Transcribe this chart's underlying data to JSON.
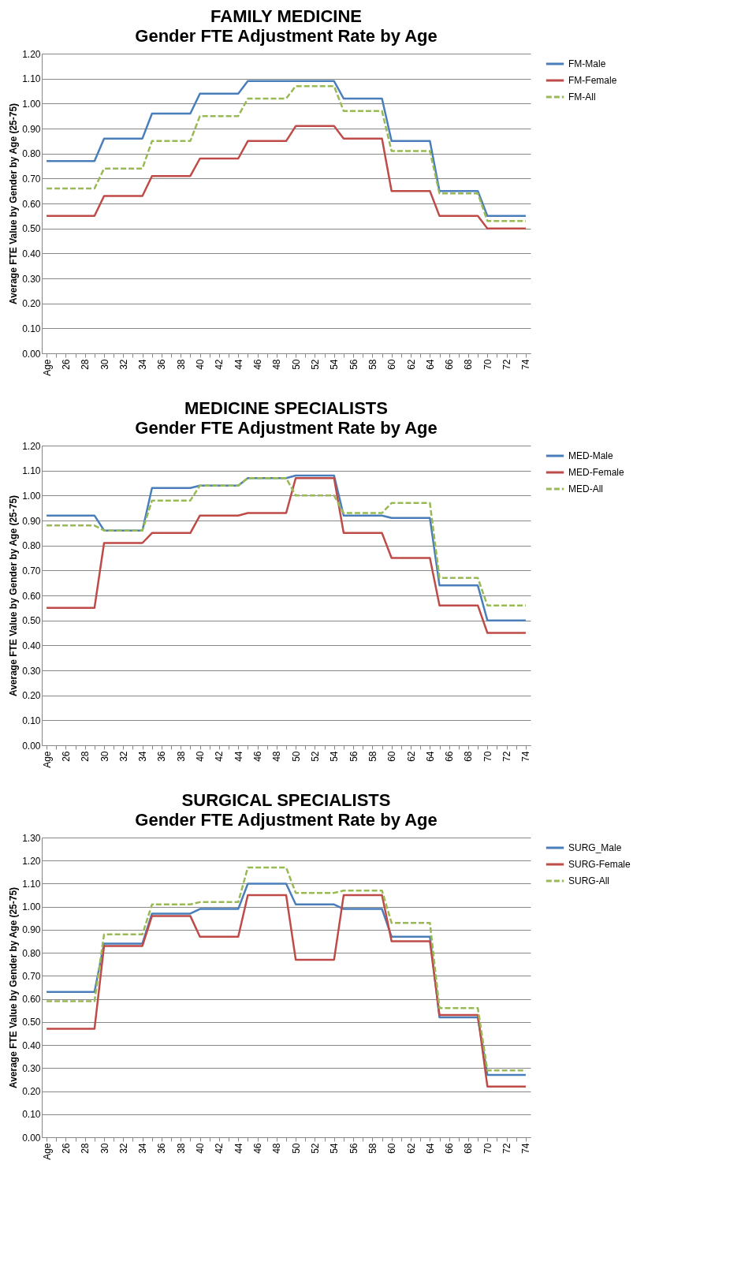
{
  "chart_data": [
    {
      "type": "line",
      "title": "FAMILY MEDICINE",
      "subtitle": "Gender FTE Adjustment Rate by Age",
      "ylabel": "Average FTE Value by Gender by Age (25-75)",
      "categories": [
        "Age",
        null,
        "26",
        null,
        "28",
        null,
        "30",
        null,
        "32",
        null,
        "34",
        null,
        "36",
        null,
        "38",
        null,
        "40",
        null,
        "42",
        null,
        "44",
        null,
        "46",
        null,
        "48",
        null,
        "50",
        null,
        "52",
        null,
        "54",
        null,
        "56",
        null,
        "58",
        null,
        "60",
        null,
        "62",
        null,
        "64",
        null,
        "66",
        null,
        "68",
        null,
        "70",
        null,
        "72",
        null,
        "74"
      ],
      "series": [
        {
          "name": "FM-Male",
          "color": "#4a7ebb",
          "line_style": "solid",
          "values": [
            0.77,
            0.77,
            0.77,
            0.77,
            0.77,
            0.77,
            0.86,
            0.86,
            0.86,
            0.86,
            0.86,
            0.96,
            0.96,
            0.96,
            0.96,
            0.96,
            1.04,
            1.04,
            1.04,
            1.04,
            1.04,
            1.09,
            1.09,
            1.09,
            1.09,
            1.09,
            1.09,
            1.09,
            1.09,
            1.09,
            1.09,
            1.02,
            1.02,
            1.02,
            1.02,
            1.02,
            0.85,
            0.85,
            0.85,
            0.85,
            0.85,
            0.65,
            0.65,
            0.65,
            0.65,
            0.65,
            0.55,
            0.55,
            0.55,
            0.55,
            0.55
          ]
        },
        {
          "name": "FM-Female",
          "color": "#be4b48",
          "line_style": "solid",
          "values": [
            0.55,
            0.55,
            0.55,
            0.55,
            0.55,
            0.55,
            0.63,
            0.63,
            0.63,
            0.63,
            0.63,
            0.71,
            0.71,
            0.71,
            0.71,
            0.71,
            0.78,
            0.78,
            0.78,
            0.78,
            0.78,
            0.85,
            0.85,
            0.85,
            0.85,
            0.85,
            0.91,
            0.91,
            0.91,
            0.91,
            0.91,
            0.86,
            0.86,
            0.86,
            0.86,
            0.86,
            0.65,
            0.65,
            0.65,
            0.65,
            0.65,
            0.55,
            0.55,
            0.55,
            0.55,
            0.55,
            0.5,
            0.5,
            0.5,
            0.5,
            0.5
          ]
        },
        {
          "name": "FM-All",
          "color": "#98b954",
          "line_style": "dashed",
          "values": [
            0.66,
            0.66,
            0.66,
            0.66,
            0.66,
            0.66,
            0.74,
            0.74,
            0.74,
            0.74,
            0.74,
            0.85,
            0.85,
            0.85,
            0.85,
            0.85,
            0.95,
            0.95,
            0.95,
            0.95,
            0.95,
            1.02,
            1.02,
            1.02,
            1.02,
            1.02,
            1.07,
            1.07,
            1.07,
            1.07,
            1.07,
            0.97,
            0.97,
            0.97,
            0.97,
            0.97,
            0.81,
            0.81,
            0.81,
            0.81,
            0.81,
            0.64,
            0.64,
            0.64,
            0.64,
            0.64,
            0.53,
            0.53,
            0.53,
            0.53,
            0.53
          ]
        }
      ],
      "ylim": [
        0,
        1.2
      ],
      "yticks": [
        {
          "value": 0,
          "label": "0.00"
        },
        {
          "value": 0.1,
          "label": "0.10"
        },
        {
          "value": 0.2,
          "label": "0.20"
        },
        {
          "value": 0.3,
          "label": "0.30"
        },
        {
          "value": 0.4,
          "label": "0.40"
        },
        {
          "value": 0.5,
          "label": "0.50"
        },
        {
          "value": 0.6,
          "label": "0.60"
        },
        {
          "value": 0.7,
          "label": "0.70"
        },
        {
          "value": 0.8,
          "label": "0.80"
        },
        {
          "value": 0.9,
          "label": "0.90"
        },
        {
          "value": 1,
          "label": "1.00"
        },
        {
          "value": 1.1,
          "label": "1.10"
        },
        {
          "value": 1.2,
          "label": "1.20"
        }
      ],
      "grid": "y",
      "legend": "right"
    },
    {
      "type": "line",
      "title": "MEDICINE SPECIALISTS",
      "subtitle": "Gender FTE Adjustment Rate by Age",
      "ylabel": "Average FTE Value by Gender by Age (25-75)",
      "categories": [
        "Age",
        null,
        "26",
        null,
        "28",
        null,
        "30",
        null,
        "32",
        null,
        "34",
        null,
        "36",
        null,
        "38",
        null,
        "40",
        null,
        "42",
        null,
        "44",
        null,
        "46",
        null,
        "48",
        null,
        "50",
        null,
        "52",
        null,
        "54",
        null,
        "56",
        null,
        "58",
        null,
        "60",
        null,
        "62",
        null,
        "64",
        null,
        "66",
        null,
        "68",
        null,
        "70",
        null,
        "72",
        null,
        "74"
      ],
      "series": [
        {
          "name": "MED-Male",
          "color": "#4a7ebb",
          "line_style": "solid",
          "values": [
            0.92,
            0.92,
            0.92,
            0.92,
            0.92,
            0.92,
            0.86,
            0.86,
            0.86,
            0.86,
            0.86,
            1.03,
            1.03,
            1.03,
            1.03,
            1.03,
            1.04,
            1.04,
            1.04,
            1.04,
            1.04,
            1.07,
            1.07,
            1.07,
            1.07,
            1.07,
            1.08,
            1.08,
            1.08,
            1.08,
            1.08,
            0.92,
            0.92,
            0.92,
            0.92,
            0.92,
            0.91,
            0.91,
            0.91,
            0.91,
            0.91,
            0.64,
            0.64,
            0.64,
            0.64,
            0.64,
            0.5,
            0.5,
            0.5,
            0.5,
            0.5
          ]
        },
        {
          "name": "MED-Female",
          "color": "#be4b48",
          "line_style": "solid",
          "values": [
            0.55,
            0.55,
            0.55,
            0.55,
            0.55,
            0.55,
            0.81,
            0.81,
            0.81,
            0.81,
            0.81,
            0.85,
            0.85,
            0.85,
            0.85,
            0.85,
            0.92,
            0.92,
            0.92,
            0.92,
            0.92,
            0.93,
            0.93,
            0.93,
            0.93,
            0.93,
            1.07,
            1.07,
            1.07,
            1.07,
            1.07,
            0.85,
            0.85,
            0.85,
            0.85,
            0.85,
            0.75,
            0.75,
            0.75,
            0.75,
            0.75,
            0.56,
            0.56,
            0.56,
            0.56,
            0.56,
            0.45,
            0.45,
            0.45,
            0.45,
            0.45
          ]
        },
        {
          "name": "MED-All",
          "color": "#98b954",
          "line_style": "dashed",
          "values": [
            0.88,
            0.88,
            0.88,
            0.88,
            0.88,
            0.88,
            0.86,
            0.86,
            0.86,
            0.86,
            0.86,
            0.98,
            0.98,
            0.98,
            0.98,
            0.98,
            1.04,
            1.04,
            1.04,
            1.04,
            1.04,
            1.07,
            1.07,
            1.07,
            1.07,
            1.07,
            1.0,
            1.0,
            1.0,
            1.0,
            1.0,
            0.93,
            0.93,
            0.93,
            0.93,
            0.93,
            0.97,
            0.97,
            0.97,
            0.97,
            0.97,
            0.67,
            0.67,
            0.67,
            0.67,
            0.67,
            0.56,
            0.56,
            0.56,
            0.56,
            0.56
          ]
        }
      ],
      "ylim": [
        0,
        1.2
      ],
      "yticks": [
        {
          "value": 0,
          "label": "0.00"
        },
        {
          "value": 0.1,
          "label": "0.10"
        },
        {
          "value": 0.2,
          "label": "0.20"
        },
        {
          "value": 0.3,
          "label": "0.30"
        },
        {
          "value": 0.4,
          "label": "0.40"
        },
        {
          "value": 0.5,
          "label": "0.50"
        },
        {
          "value": 0.6,
          "label": "0.60"
        },
        {
          "value": 0.7,
          "label": "0.70"
        },
        {
          "value": 0.8,
          "label": "0.80"
        },
        {
          "value": 0.9,
          "label": "0.90"
        },
        {
          "value": 1,
          "label": "1.00"
        },
        {
          "value": 1.1,
          "label": "1.10"
        },
        {
          "value": 1.2,
          "label": "1.20"
        }
      ],
      "grid": "y",
      "legend": "right"
    },
    {
      "type": "line",
      "title": "SURGICAL SPECIALISTS",
      "subtitle": "Gender FTE Adjustment Rate by Age",
      "ylabel": "Average FTE Value by Gender by Age (25-75)",
      "categories": [
        "Age",
        null,
        "26",
        null,
        "28",
        null,
        "30",
        null,
        "32",
        null,
        "34",
        null,
        "36",
        null,
        "38",
        null,
        "40",
        null,
        "42",
        null,
        "44",
        null,
        "46",
        null,
        "48",
        null,
        "50",
        null,
        "52",
        null,
        "54",
        null,
        "56",
        null,
        "58",
        null,
        "60",
        null,
        "62",
        null,
        "64",
        null,
        "66",
        null,
        "68",
        null,
        "70",
        null,
        "72",
        null,
        "74"
      ],
      "series": [
        {
          "name": "SURG_Male",
          "color": "#4a7ebb",
          "line_style": "solid",
          "values": [
            0.63,
            0.63,
            0.63,
            0.63,
            0.63,
            0.63,
            0.84,
            0.84,
            0.84,
            0.84,
            0.84,
            0.97,
            0.97,
            0.97,
            0.97,
            0.97,
            0.99,
            0.99,
            0.99,
            0.99,
            0.99,
            1.1,
            1.1,
            1.1,
            1.1,
            1.1,
            1.01,
            1.01,
            1.01,
            1.01,
            1.01,
            0.99,
            0.99,
            0.99,
            0.99,
            0.99,
            0.87,
            0.87,
            0.87,
            0.87,
            0.87,
            0.52,
            0.52,
            0.52,
            0.52,
            0.52,
            0.27,
            0.27,
            0.27,
            0.27,
            0.27
          ]
        },
        {
          "name": "SURG-Female",
          "color": "#be4b48",
          "line_style": "solid",
          "values": [
            0.47,
            0.47,
            0.47,
            0.47,
            0.47,
            0.47,
            0.83,
            0.83,
            0.83,
            0.83,
            0.83,
            0.96,
            0.96,
            0.96,
            0.96,
            0.96,
            0.87,
            0.87,
            0.87,
            0.87,
            0.87,
            1.05,
            1.05,
            1.05,
            1.05,
            1.05,
            0.77,
            0.77,
            0.77,
            0.77,
            0.77,
            1.05,
            1.05,
            1.05,
            1.05,
            1.05,
            0.85,
            0.85,
            0.85,
            0.85,
            0.85,
            0.53,
            0.53,
            0.53,
            0.53,
            0.53,
            0.22,
            0.22,
            0.22,
            0.22,
            0.22
          ]
        },
        {
          "name": "SURG-All",
          "color": "#98b954",
          "line_style": "dashed",
          "values": [
            0.59,
            0.59,
            0.59,
            0.59,
            0.59,
            0.59,
            0.88,
            0.88,
            0.88,
            0.88,
            0.88,
            1.01,
            1.01,
            1.01,
            1.01,
            1.01,
            1.02,
            1.02,
            1.02,
            1.02,
            1.02,
            1.17,
            1.17,
            1.17,
            1.17,
            1.17,
            1.06,
            1.06,
            1.06,
            1.06,
            1.06,
            1.07,
            1.07,
            1.07,
            1.07,
            1.07,
            0.93,
            0.93,
            0.93,
            0.93,
            0.93,
            0.56,
            0.56,
            0.56,
            0.56,
            0.56,
            0.29,
            0.29,
            0.29,
            0.29,
            0.29
          ]
        }
      ],
      "ylim": [
        0,
        1.3
      ],
      "yticks": [
        {
          "value": 0,
          "label": "0.00"
        },
        {
          "value": 0.1,
          "label": "0.10"
        },
        {
          "value": 0.2,
          "label": "0.20"
        },
        {
          "value": 0.3,
          "label": "0.30"
        },
        {
          "value": 0.4,
          "label": "0.40"
        },
        {
          "value": 0.5,
          "label": "0.50"
        },
        {
          "value": 0.6,
          "label": "0.60"
        },
        {
          "value": 0.7,
          "label": "0.70"
        },
        {
          "value": 0.8,
          "label": "0.80"
        },
        {
          "value": 0.9,
          "label": "0.90"
        },
        {
          "value": 1,
          "label": "1.00"
        },
        {
          "value": 1.1,
          "label": "1.10"
        },
        {
          "value": 1.2,
          "label": "1.20"
        },
        {
          "value": 1.3,
          "label": "1.30"
        }
      ],
      "grid": "y",
      "legend": "right"
    }
  ]
}
